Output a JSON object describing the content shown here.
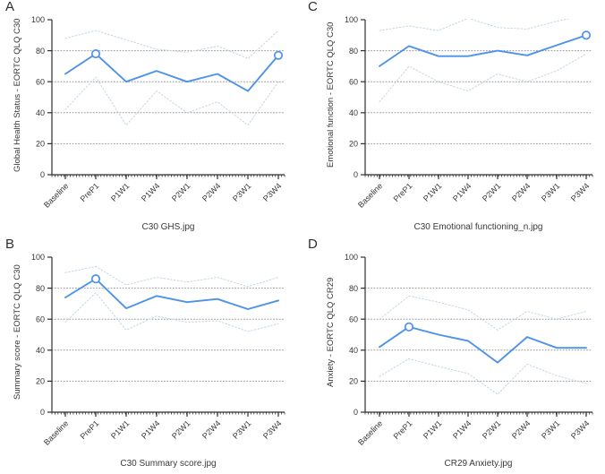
{
  "colors": {
    "accent_line": "#4e92e9",
    "marker_fill": "#ffffff",
    "band_dotted": "#c3d6e4",
    "gridline": "#9a9a9a",
    "axis": "#2f2f2f",
    "text": "#353535",
    "background": "#ffffff"
  },
  "chart_data": [
    {
      "panel_label": "A",
      "type": "line",
      "title": "",
      "caption": "C30 GHS.jpg",
      "ylabel": "Global Health Status - EORTC QLQ C30",
      "xlabel": "",
      "ylim": [
        0,
        100
      ],
      "yticks": [
        0,
        20,
        40,
        60,
        80,
        100
      ],
      "gridlines": [
        20,
        40,
        60,
        80
      ],
      "grid_style": "dotted",
      "legend": "none",
      "categories": [
        "Baseline",
        "PreP1",
        "P1W1",
        "P1W4",
        "P2W1",
        "P2W4",
        "P3W1",
        "P3W4"
      ],
      "series": [
        {
          "name": "mean",
          "style": "solid",
          "values": [
            65,
            78,
            60,
            67,
            60,
            65,
            54,
            77
          ],
          "markers": [
            "PreP1",
            "P3W4"
          ]
        },
        {
          "name": "upper-bound",
          "style": "dotted",
          "values": [
            88,
            93,
            87,
            81,
            79,
            83,
            75,
            93
          ]
        },
        {
          "name": "lower-bound",
          "style": "dotted",
          "values": [
            42,
            63,
            32,
            54,
            40,
            47,
            32,
            60
          ]
        }
      ]
    },
    {
      "panel_label": "B",
      "type": "line",
      "title": "",
      "caption": "C30 Summary score.jpg",
      "ylabel": "Summary score - EORTC QLQ C30",
      "xlabel": "",
      "ylim": [
        0,
        100
      ],
      "yticks": [
        0,
        20,
        40,
        60,
        80,
        100
      ],
      "gridlines": [
        20,
        40,
        60,
        80
      ],
      "grid_style": "dotted",
      "legend": "none",
      "categories": [
        "Baseline",
        "PreP1",
        "P1W1",
        "P1W4",
        "P2W1",
        "P2W4",
        "P3W1",
        "P3W4"
      ],
      "series": [
        {
          "name": "mean",
          "style": "solid",
          "values": [
            74,
            86,
            67,
            75,
            71,
            73,
            66.5,
            72
          ],
          "markers": [
            "PreP1"
          ]
        },
        {
          "name": "upper-bound",
          "style": "dotted",
          "values": [
            90,
            94,
            82,
            87,
            84,
            87,
            81,
            87
          ]
        },
        {
          "name": "lower-bound",
          "style": "dotted",
          "values": [
            58,
            77,
            53,
            62,
            58,
            59,
            52,
            57
          ]
        }
      ]
    },
    {
      "panel_label": "C",
      "type": "line",
      "title": "",
      "caption": "C30 Emotional functioning_n.jpg",
      "ylabel": "Emotional function - EORTC QLQ C30",
      "xlabel": "",
      "ylim": [
        0,
        100
      ],
      "yticks": [
        0,
        20,
        40,
        60,
        80,
        100
      ],
      "gridlines": [
        20,
        40,
        60,
        80
      ],
      "grid_style": "dotted",
      "legend": "none",
      "categories": [
        "Baseline",
        "PreP1",
        "P1W1",
        "P1W4",
        "P2W1",
        "P2W4",
        "P3W1",
        "P3W4"
      ],
      "series": [
        {
          "name": "mean",
          "style": "solid",
          "values": [
            70,
            83,
            76.5,
            76.5,
            80,
            77,
            83.5,
            90
          ],
          "markers": [
            "P3W4"
          ]
        },
        {
          "name": "upper-bound",
          "style": "dotted",
          "values": [
            93,
            96,
            93,
            101,
            95,
            94,
            99,
            103
          ]
        },
        {
          "name": "lower-bound",
          "style": "dotted",
          "values": [
            47,
            70,
            60,
            54,
            65,
            60,
            67,
            78
          ]
        }
      ]
    },
    {
      "panel_label": "D",
      "type": "line",
      "title": "",
      "caption": "CR29 Anxiety.jpg",
      "ylabel": "Anxiety - EORTC QLQ CR29",
      "xlabel": "",
      "ylim": [
        0,
        100
      ],
      "yticks": [
        0,
        20,
        40,
        60,
        80,
        100
      ],
      "gridlines": [
        20,
        40,
        60,
        80
      ],
      "grid_style": "dotted",
      "legend": "none",
      "categories": [
        "Baseline",
        "PreP1",
        "P1W1",
        "P1W4",
        "P2W1",
        "P2W4",
        "P3W1",
        "P3W4"
      ],
      "series": [
        {
          "name": "mean",
          "style": "solid",
          "values": [
            42,
            55,
            50,
            46,
            32,
            48.5,
            41.5,
            41.5
          ],
          "markers": [
            "PreP1"
          ]
        },
        {
          "name": "upper-bound",
          "style": "dotted",
          "values": [
            60,
            75,
            71,
            66,
            53,
            65,
            60,
            65
          ]
        },
        {
          "name": "lower-bound",
          "style": "dotted",
          "values": [
            23,
            34.5,
            29.5,
            25,
            11.5,
            31,
            23.5,
            18.5
          ]
        }
      ]
    }
  ]
}
